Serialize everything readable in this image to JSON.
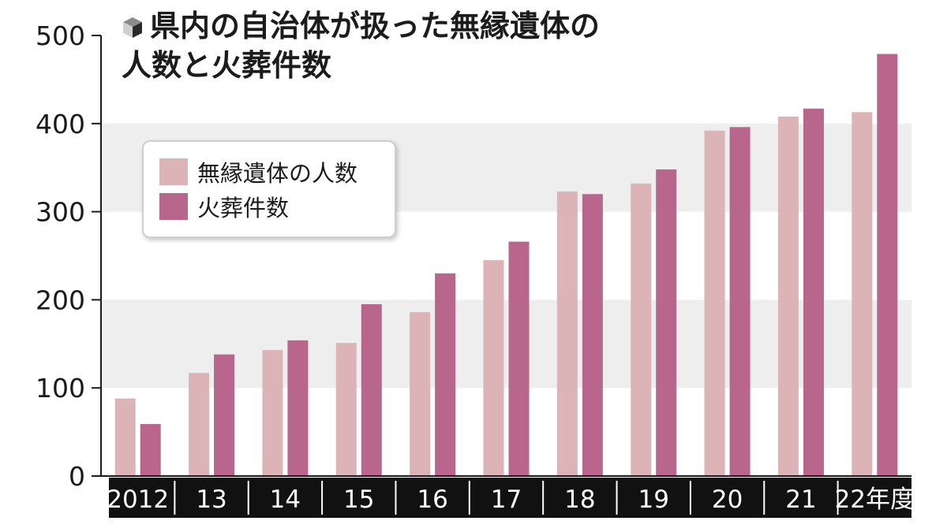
{
  "title": {
    "line1": "県内の自治体が扱った無縁遺体の",
    "line2": "人数と火葬件数"
  },
  "icon": "cube-icon",
  "colors": {
    "series_1": "#dcb4b8",
    "series_2": "#b9668c",
    "band": "#eeeeee",
    "axis_bar": "#111111",
    "axis_text": "#ffffff"
  },
  "legend": {
    "placement": "upper-left",
    "items": [
      "無縁遺体の人数",
      "火葬件数"
    ]
  },
  "chart_data": {
    "type": "bar",
    "title": "県内の自治体が扱った無縁遺体の人数と火葬件数",
    "categories": [
      "2012",
      "13",
      "14",
      "15",
      "16",
      "17",
      "18",
      "19",
      "20",
      "21",
      "22年度"
    ],
    "series": [
      {
        "name": "無縁遺体の人数",
        "values": [
          88,
          117,
          143,
          151,
          186,
          245,
          323,
          332,
          392,
          408,
          413
        ]
      },
      {
        "name": "火葬件数",
        "values": [
          59,
          138,
          154,
          195,
          230,
          266,
          320,
          348,
          396,
          417,
          479
        ]
      }
    ],
    "xlabel": "",
    "ylabel": "",
    "ylim": [
      0,
      500
    ],
    "yticks": [
      "0",
      "100",
      "200",
      "300",
      "400",
      "500"
    ],
    "grid": "alternating horizontal bands"
  }
}
